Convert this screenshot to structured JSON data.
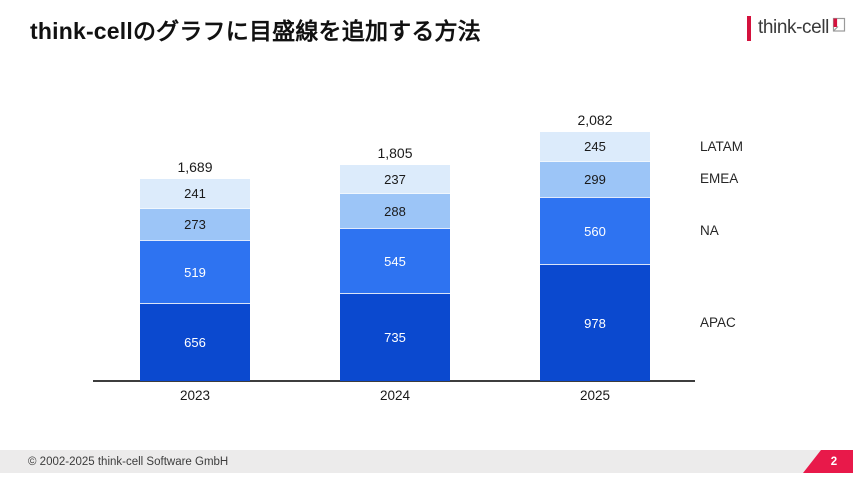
{
  "slide": {
    "title": "think-cellのグラフに目盛線を追加する方法",
    "logo": {
      "text": "think-cell"
    },
    "footer": {
      "copyright": "© 2002-2025 think-cell Software GmbH",
      "page_number": "2"
    }
  },
  "chart_data": {
    "type": "bar",
    "subtype": "stacked",
    "categories": [
      "2023",
      "2024",
      "2025"
    ],
    "series": [
      {
        "name": "APAC",
        "values": [
          656,
          735,
          978
        ],
        "color": "#0b49cf",
        "label_color": "#ffffff"
      },
      {
        "name": "NA",
        "values": [
          519,
          545,
          560
        ],
        "color": "#2e73f1",
        "label_color": "#ffffff"
      },
      {
        "name": "EMEA",
        "values": [
          273,
          288,
          299
        ],
        "color": "#9cc5f7",
        "label_color": "#1a1a1a"
      },
      {
        "name": "LATAM",
        "values": [
          241,
          237,
          245
        ],
        "color": "#dcebfb",
        "label_color": "#1a1a1a"
      }
    ],
    "totals": [
      "1,689",
      "1,805",
      "2,082"
    ],
    "title": "",
    "xlabel": "",
    "ylabel": "",
    "grid": false,
    "legend_position": "right-of-last-bar",
    "axis": {
      "baseline_visible": true,
      "value_labels_inside_segments": true,
      "totals_above_bars": true
    }
  }
}
